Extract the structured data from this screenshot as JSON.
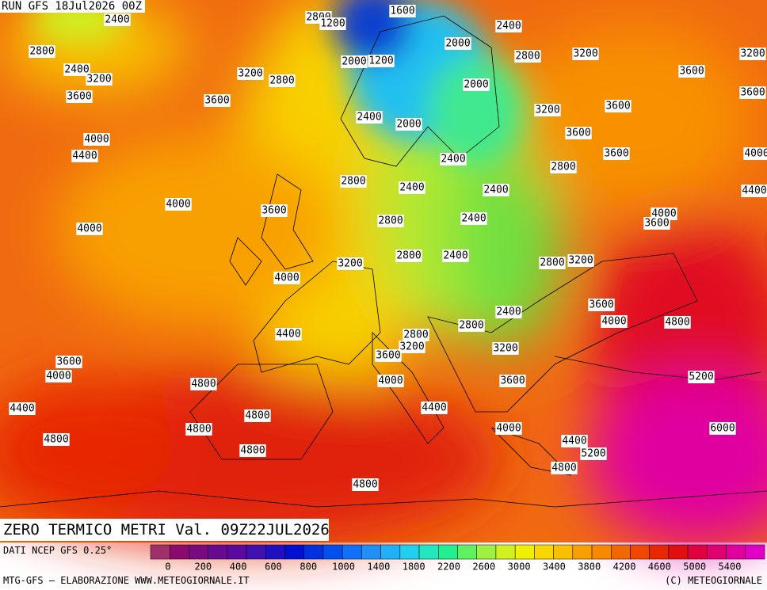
{
  "header": {
    "run": "RUN GFS 18Jul2026 00Z"
  },
  "title": "ZERO TERMICO METRI Val. 09Z22JUL2026",
  "source": "DATI NCEP GFS 0.25°",
  "credit_left": "MTG-GFS — ELABORAZIONE WWW.METEOGIORNALE.IT",
  "credit_right": "(C) METEOGIORNALE",
  "colorbar": {
    "labels": [
      0,
      200,
      400,
      600,
      800,
      1000,
      1400,
      1800,
      2200,
      2600,
      3000,
      3400,
      3800,
      4200,
      4600,
      5000,
      5400
    ],
    "colors": [
      "#a0306a",
      "#8a0a6e",
      "#7a0a80",
      "#680a90",
      "#5a0aa0",
      "#4010b0",
      "#2010c0",
      "#0010d0",
      "#0030e0",
      "#0050f0",
      "#1070f8",
      "#2090f8",
      "#20b0f8",
      "#20d0f0",
      "#20e8c0",
      "#20f090",
      "#60f060",
      "#a0f040",
      "#d0f020",
      "#f0f000",
      "#f8d800",
      "#f8c000",
      "#f8a000",
      "#f88800",
      "#f06800",
      "#f04800",
      "#e82800",
      "#e01010",
      "#e00040",
      "#e00070",
      "#e000a0",
      "#e000c8"
    ]
  },
  "map": {
    "contour_labels": [
      2400,
      2800,
      2400,
      3200,
      3600,
      3600,
      3200,
      2800,
      4000,
      4400,
      4000,
      4000,
      3600,
      2800,
      4000,
      3200,
      4400,
      3600,
      4000,
      4800,
      4400,
      4800,
      4800,
      4800,
      4800,
      4800,
      1600,
      2800,
      1200,
      2400,
      2000,
      2800,
      3200,
      2000,
      1200,
      2000,
      3600,
      3200,
      3600,
      2400,
      2000,
      3600,
      3600,
      2400,
      2800,
      2400,
      2400,
      4000,
      3600,
      2800,
      2400,
      2800,
      2400,
      2800,
      3200,
      3600,
      4000,
      4800,
      2400,
      2800,
      2800,
      3200,
      3600,
      3200,
      4000,
      3600,
      5200,
      4400,
      4000,
      6000,
      4400,
      5200,
      4800,
      3200,
      3600,
      4000,
      4400
    ]
  }
}
